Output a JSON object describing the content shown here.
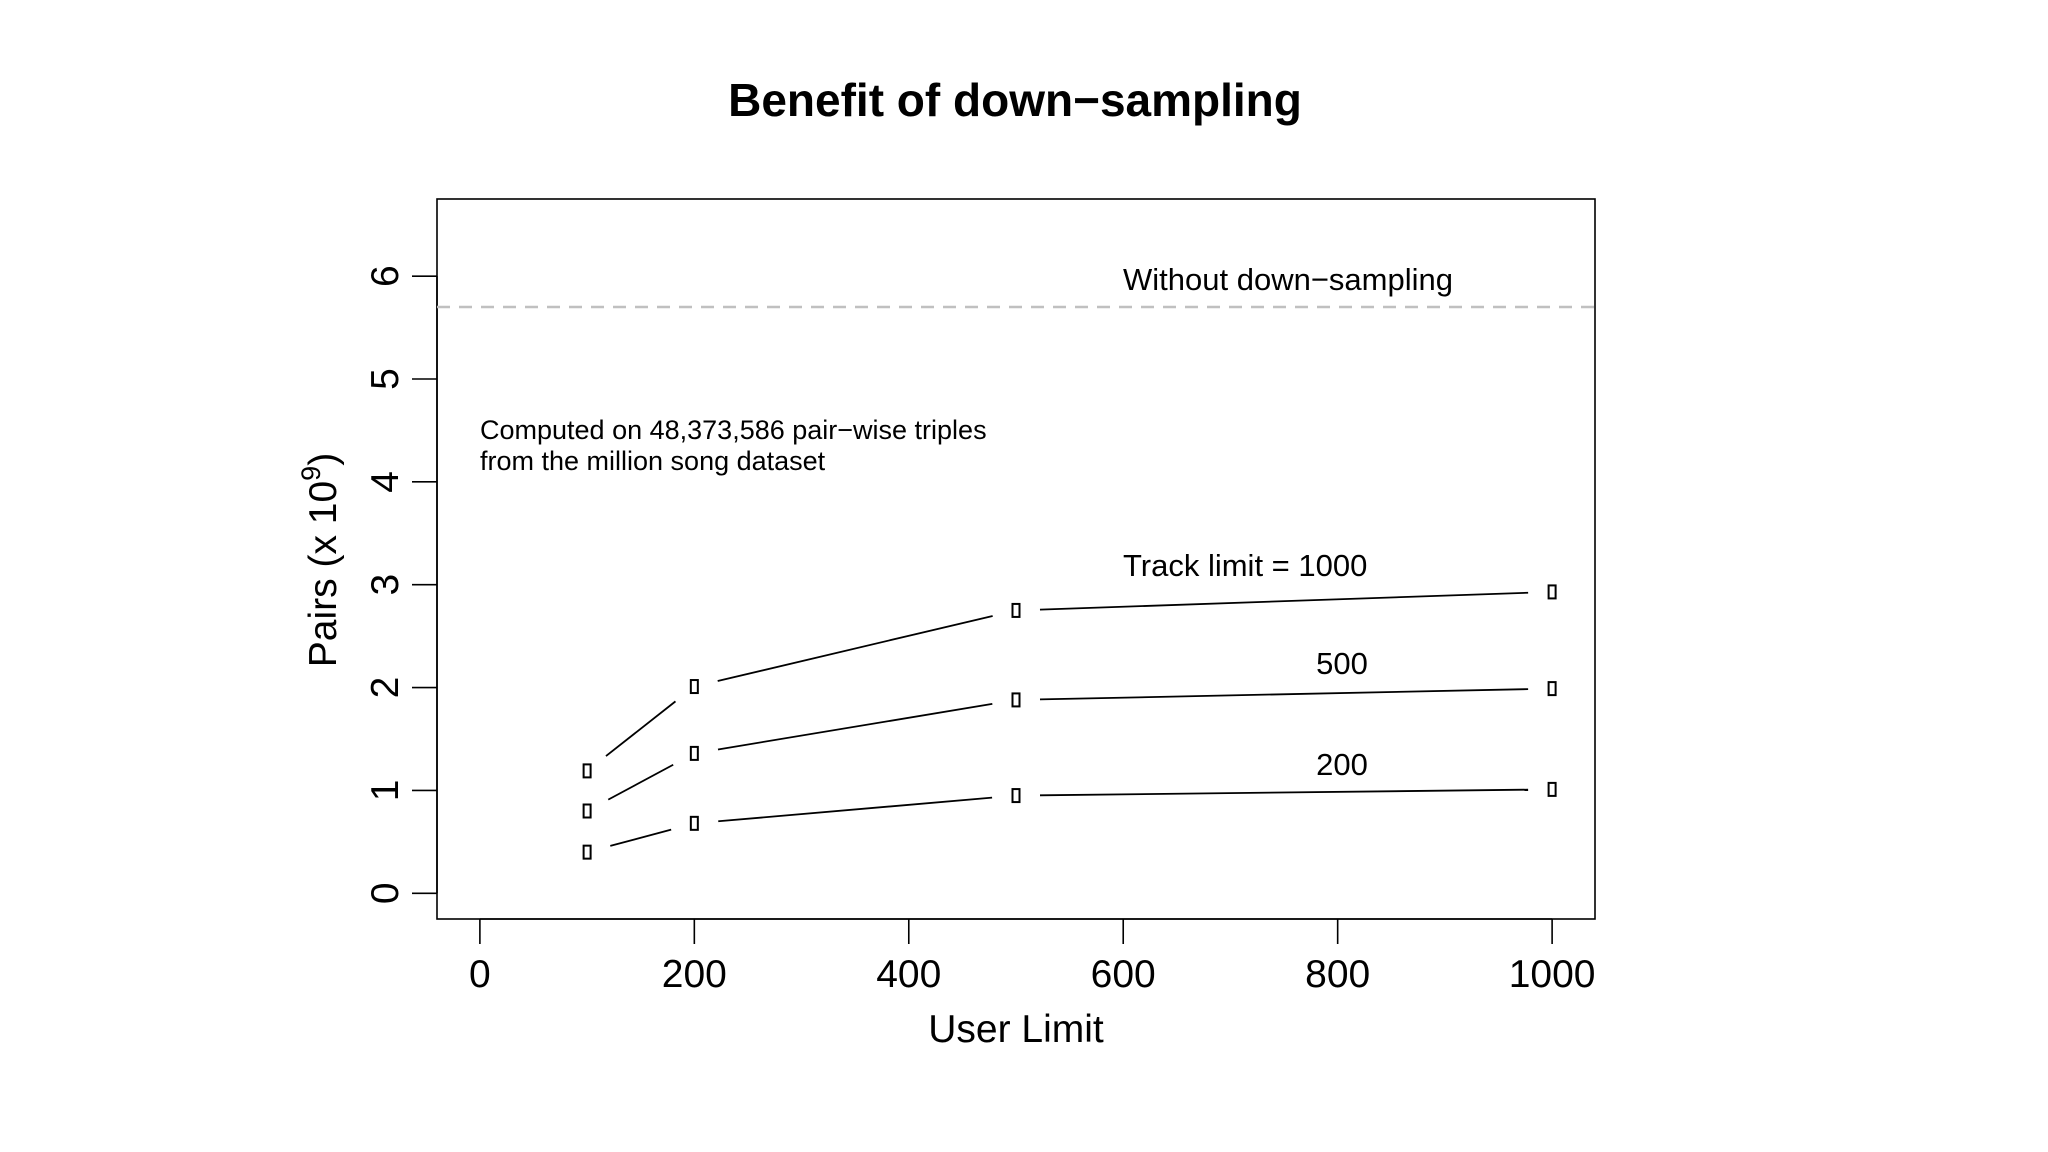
{
  "chart_data": {
    "type": "line",
    "title": "Benefit of down−sampling",
    "xlabel": "User Limit",
    "ylabel_prefix": "Pairs (x 10",
    "ylabel_exponent": "9",
    "ylabel_suffix": ")",
    "xlim": [
      -40,
      1040
    ],
    "ylim": [
      -0.25,
      6.75
    ],
    "xticks": [
      0,
      200,
      400,
      600,
      800,
      1000
    ],
    "yticks": [
      0,
      1,
      2,
      3,
      4,
      5,
      6
    ],
    "grid": false,
    "x": [
      100,
      200,
      500,
      1000
    ],
    "series": [
      {
        "name": "Track limit = 1000",
        "values": [
          1.19,
          2.01,
          2.75,
          2.93
        ]
      },
      {
        "name": "500",
        "values": [
          0.8,
          1.36,
          1.88,
          1.99
        ]
      },
      {
        "name": "200",
        "values": [
          0.4,
          0.68,
          0.95,
          1.01
        ]
      }
    ],
    "reference_line": {
      "label": "Without down−sampling",
      "value": 5.7,
      "color": "#c0c0c0"
    },
    "annotation_lines": [
      "Computed on 48,373,586 pair−wise triples",
      "from the million song dataset"
    ]
  }
}
